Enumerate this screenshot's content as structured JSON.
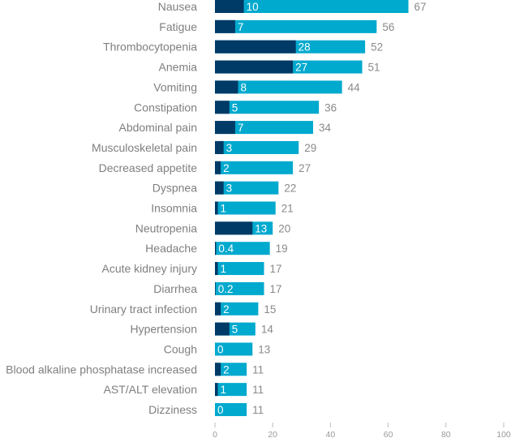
{
  "chart_data": {
    "type": "bar",
    "orientation": "horizontal",
    "stacked_overlay": true,
    "categories": [
      "Nausea",
      "Fatigue",
      "Thrombocytopenia",
      "Anemia",
      "Vomiting",
      "Constipation",
      "Abdominal pain",
      "Musculoskeletal pain",
      "Decreased appetite",
      "Dyspnea",
      "Insomnia",
      "Neutropenia",
      "Headache",
      "Acute kidney injury",
      "Diarrhea",
      "Urinary tract infection",
      "Hypertension",
      "Cough",
      "Blood alkaline phosphatase increased",
      "AST/ALT elevation",
      "Dizziness"
    ],
    "series": [
      {
        "color": "#003a66",
        "values": [
          10,
          7,
          28,
          27,
          8,
          5,
          7,
          3,
          2,
          3,
          1,
          13,
          0.4,
          1,
          0.2,
          2,
          5,
          0,
          2,
          1,
          0
        ]
      },
      {
        "color": "#00a9ce",
        "values": [
          67,
          56,
          52,
          51,
          44,
          36,
          34,
          29,
          27,
          22,
          21,
          20,
          19,
          17,
          17,
          15,
          14,
          13,
          11,
          11,
          11
        ]
      }
    ],
    "xlim": [
      0,
      100
    ],
    "xticks": [
      "0",
      "20",
      "40",
      "60",
      "80",
      "100"
    ],
    "title": "",
    "xlabel": "",
    "ylabel": "",
    "grid": false,
    "legend": "none"
  }
}
